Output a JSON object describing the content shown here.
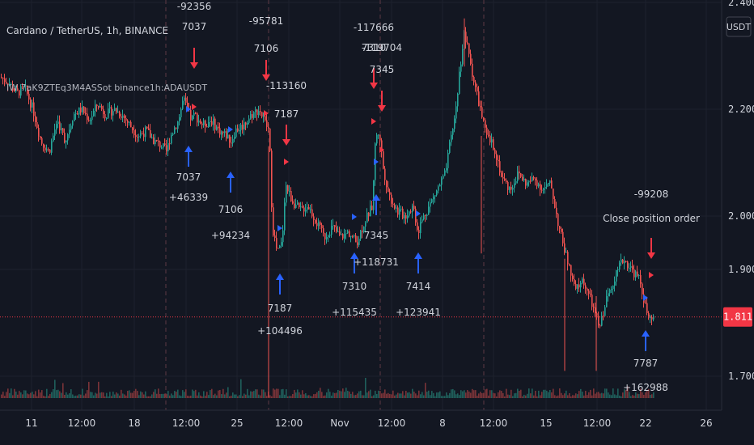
{
  "header": {
    "title": "Cardano / TetherUS, 1h, BINANCE",
    "indicator": "IW 7aK9ZTEq3M4ASSot binance1h:ADAUSDT",
    "currency_badge": "USDT"
  },
  "chart_data": {
    "type": "candlestick",
    "symbol": "ADAUSDT",
    "exchange": "BINANCE",
    "interval": "1h",
    "y_ticks": [
      "2.400",
      "2.200",
      "2.000",
      "1.900",
      "1.700"
    ],
    "ylim": [
      1.62,
      2.4
    ],
    "x_ticks": [
      "11",
      "12:00",
      "18",
      "12:00",
      "25",
      "12:00",
      "Nov",
      "12:00",
      "8",
      "12:00",
      "15",
      "12:00",
      "22",
      "26"
    ],
    "current_price": "1.811",
    "price_path": [
      [
        0,
        2.26
      ],
      [
        10,
        2.25
      ],
      [
        20,
        2.23
      ],
      [
        30,
        2.24
      ],
      [
        40,
        2.2
      ],
      [
        50,
        2.14
      ],
      [
        60,
        2.12
      ],
      [
        70,
        2.18
      ],
      [
        80,
        2.14
      ],
      [
        90,
        2.19
      ],
      [
        100,
        2.2
      ],
      [
        110,
        2.18
      ],
      [
        120,
        2.21
      ],
      [
        130,
        2.19
      ],
      [
        140,
        2.2
      ],
      [
        150,
        2.19
      ],
      [
        160,
        2.17
      ],
      [
        170,
        2.15
      ],
      [
        180,
        2.16
      ],
      [
        190,
        2.14
      ],
      [
        200,
        2.13
      ],
      [
        205,
        2.12
      ],
      [
        210,
        2.15
      ],
      [
        220,
        2.18
      ],
      [
        226,
        2.22
      ],
      [
        230,
        2.2
      ],
      [
        236,
        2.18
      ],
      [
        240,
        2.19
      ],
      [
        250,
        2.17
      ],
      [
        260,
        2.18
      ],
      [
        270,
        2.16
      ],
      [
        280,
        2.15
      ],
      [
        285,
        2.14
      ],
      [
        290,
        2.16
      ],
      [
        300,
        2.17
      ],
      [
        310,
        2.19
      ],
      [
        320,
        2.2
      ],
      [
        328,
        2.17
      ],
      [
        332,
        2.16
      ],
      [
        336,
        1.98
      ],
      [
        342,
        1.93
      ],
      [
        348,
        1.95
      ],
      [
        352,
        2.06
      ],
      [
        360,
        2.03
      ],
      [
        370,
        2.01
      ],
      [
        380,
        2.02
      ],
      [
        390,
        1.99
      ],
      [
        400,
        1.96
      ],
      [
        410,
        1.98
      ],
      [
        420,
        1.96
      ],
      [
        430,
        1.97
      ],
      [
        440,
        1.95
      ],
      [
        450,
        1.99
      ],
      [
        460,
        2.02
      ],
      [
        463,
        2.14
      ],
      [
        468,
        2.16
      ],
      [
        473,
        2.09
      ],
      [
        480,
        2.04
      ],
      [
        490,
        2.01
      ],
      [
        500,
        2.0
      ],
      [
        510,
        2.02
      ],
      [
        516,
        1.97
      ],
      [
        520,
        1.99
      ],
      [
        530,
        2.02
      ],
      [
        540,
        2.05
      ],
      [
        550,
        2.08
      ],
      [
        556,
        2.14
      ],
      [
        562,
        2.19
      ],
      [
        568,
        2.28
      ],
      [
        573,
        2.34
      ],
      [
        578,
        2.31
      ],
      [
        584,
        2.26
      ],
      [
        590,
        2.22
      ],
      [
        596,
        2.18
      ],
      [
        600,
        2.15
      ],
      [
        610,
        2.13
      ],
      [
        620,
        2.07
      ],
      [
        630,
        2.05
      ],
      [
        640,
        2.08
      ],
      [
        650,
        2.06
      ],
      [
        660,
        2.07
      ],
      [
        670,
        2.05
      ],
      [
        680,
        2.06
      ],
      [
        690,
        1.98
      ],
      [
        700,
        1.92
      ],
      [
        710,
        1.86
      ],
      [
        720,
        1.88
      ],
      [
        730,
        1.84
      ],
      [
        740,
        1.79
      ],
      [
        750,
        1.85
      ],
      [
        760,
        1.89
      ],
      [
        770,
        1.92
      ],
      [
        780,
        1.9
      ],
      [
        790,
        1.88
      ],
      [
        797,
        1.83
      ],
      [
        802,
        1.8
      ],
      [
        808,
        1.81
      ]
    ],
    "events": [
      {
        "side": "sell",
        "label_top": "-92356",
        "label_bottom": "7037"
      },
      {
        "side": "buy",
        "label_top": "7037",
        "label_bottom": "+46339"
      },
      {
        "side": "buy",
        "label_top": "7106",
        "label_bottom": "+94234"
      },
      {
        "side": "sell",
        "label_top": "-95781",
        "label_bottom": "7106"
      },
      {
        "side": "sell",
        "label_top": "-113160",
        "label_bottom": "7187"
      },
      {
        "side": "buy",
        "label_top": "7187",
        "label_bottom": "+104496"
      },
      {
        "side": "buy",
        "label_top": "7310",
        "label_bottom": "+115435"
      },
      {
        "side": "sell",
        "label_top": "-117666",
        "label_bottom": "7310"
      },
      {
        "side": "sell",
        "label_top": "-119704",
        "label_bottom": "7345"
      },
      {
        "side": "buy",
        "label_top": "7345",
        "label_bottom": "+118731"
      },
      {
        "side": "buy",
        "label_top": "7414",
        "label_bottom": "+123941"
      },
      {
        "side": "sell",
        "label_top": "-99208",
        "label_bottom": "Close position order"
      },
      {
        "side": "buy",
        "label_top": "7787",
        "label_bottom": "+162988"
      }
    ],
    "colors": {
      "background": "#131722",
      "up": "#26a69a",
      "down": "#ef5350",
      "buy_arrow": "#2962ff",
      "sell_arrow": "#f23645",
      "price_line": "#f23645",
      "grid": "#1e222d",
      "text": "#d1d4dc"
    }
  }
}
